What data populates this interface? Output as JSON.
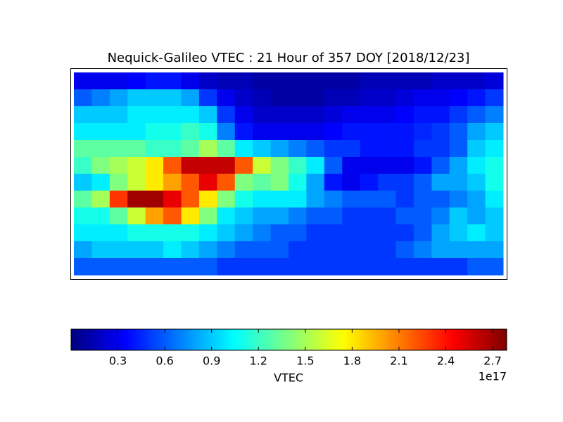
{
  "chart_data": {
    "type": "heatmap",
    "title": "Nequick-Galileo VTEC : 21 Hour of 357 DOY [2018/12/23]",
    "colormap": "jet",
    "clim": [
      0.0,
      2.79
    ],
    "colorbar_label": "VTEC",
    "colorbar_offset": "1e17",
    "colorbar_ticks": [
      0.3,
      0.6,
      0.9,
      1.2,
      1.5,
      1.8,
      2.1,
      2.4,
      2.7
    ],
    "z": [
      [
        0.3,
        0.3,
        0.3,
        0.35,
        0.4,
        0.4,
        0.3,
        0.2,
        0.15,
        0.15,
        0.1,
        0.1,
        0.1,
        0.1,
        0.1,
        0.1,
        0.15,
        0.15,
        0.15,
        0.15,
        0.2,
        0.2,
        0.2,
        0.25
      ],
      [
        0.6,
        0.7,
        0.8,
        0.9,
        0.9,
        0.9,
        0.8,
        0.5,
        0.3,
        0.2,
        0.15,
        0.1,
        0.1,
        0.1,
        0.15,
        0.15,
        0.2,
        0.2,
        0.25,
        0.3,
        0.3,
        0.35,
        0.4,
        0.5
      ],
      [
        0.9,
        0.9,
        0.9,
        1.0,
        1.0,
        1.0,
        1.0,
        0.9,
        0.5,
        0.3,
        0.2,
        0.2,
        0.2,
        0.2,
        0.25,
        0.3,
        0.3,
        0.3,
        0.35,
        0.4,
        0.4,
        0.5,
        0.6,
        0.7
      ],
      [
        1.0,
        1.0,
        1.0,
        1.0,
        1.1,
        1.1,
        1.2,
        1.1,
        0.7,
        0.4,
        0.3,
        0.3,
        0.3,
        0.3,
        0.35,
        0.4,
        0.4,
        0.4,
        0.4,
        0.45,
        0.5,
        0.6,
        0.8,
        0.9
      ],
      [
        1.3,
        1.3,
        1.3,
        1.3,
        1.2,
        1.2,
        1.3,
        1.5,
        1.3,
        1.0,
        0.9,
        0.8,
        0.7,
        0.6,
        0.5,
        0.5,
        0.4,
        0.4,
        0.4,
        0.5,
        0.5,
        0.6,
        0.9,
        1.0
      ],
      [
        1.2,
        1.4,
        1.5,
        1.6,
        1.8,
        2.2,
        2.6,
        2.6,
        2.6,
        2.2,
        1.6,
        1.4,
        1.2,
        1.0,
        0.6,
        0.3,
        0.3,
        0.3,
        0.3,
        0.4,
        0.6,
        0.8,
        1.0,
        1.1
      ],
      [
        0.9,
        1.0,
        1.4,
        1.6,
        1.8,
        2.0,
        2.2,
        2.5,
        2.2,
        1.4,
        1.3,
        1.4,
        1.1,
        0.8,
        0.4,
        0.3,
        0.4,
        0.5,
        0.5,
        0.6,
        0.8,
        0.8,
        0.9,
        1.1
      ],
      [
        1.3,
        1.5,
        2.3,
        2.7,
        2.7,
        2.5,
        2.2,
        1.8,
        1.4,
        1.1,
        1.0,
        1.0,
        1.0,
        0.8,
        0.7,
        0.6,
        0.6,
        0.6,
        0.5,
        0.6,
        0.6,
        0.7,
        0.8,
        1.0
      ],
      [
        1.1,
        1.1,
        1.3,
        1.6,
        2.0,
        2.2,
        1.8,
        1.4,
        1.0,
        0.9,
        0.8,
        0.8,
        0.7,
        0.6,
        0.6,
        0.5,
        0.5,
        0.5,
        0.6,
        0.6,
        0.7,
        0.9,
        0.8,
        0.9
      ],
      [
        1.0,
        1.0,
        1.0,
        1.1,
        1.1,
        1.1,
        1.1,
        1.0,
        0.9,
        0.8,
        0.7,
        0.6,
        0.6,
        0.5,
        0.5,
        0.5,
        0.5,
        0.5,
        0.5,
        0.6,
        0.8,
        0.9,
        1.0,
        0.9
      ],
      [
        0.8,
        0.9,
        0.9,
        0.9,
        0.9,
        1.0,
        0.9,
        0.8,
        0.7,
        0.6,
        0.6,
        0.6,
        0.5,
        0.5,
        0.5,
        0.5,
        0.5,
        0.5,
        0.6,
        0.7,
        0.8,
        0.8,
        0.8,
        0.8
      ],
      [
        0.6,
        0.6,
        0.6,
        0.6,
        0.6,
        0.6,
        0.6,
        0.6,
        0.5,
        0.5,
        0.5,
        0.5,
        0.5,
        0.5,
        0.5,
        0.5,
        0.5,
        0.5,
        0.5,
        0.5,
        0.5,
        0.5,
        0.6,
        0.6
      ]
    ]
  }
}
